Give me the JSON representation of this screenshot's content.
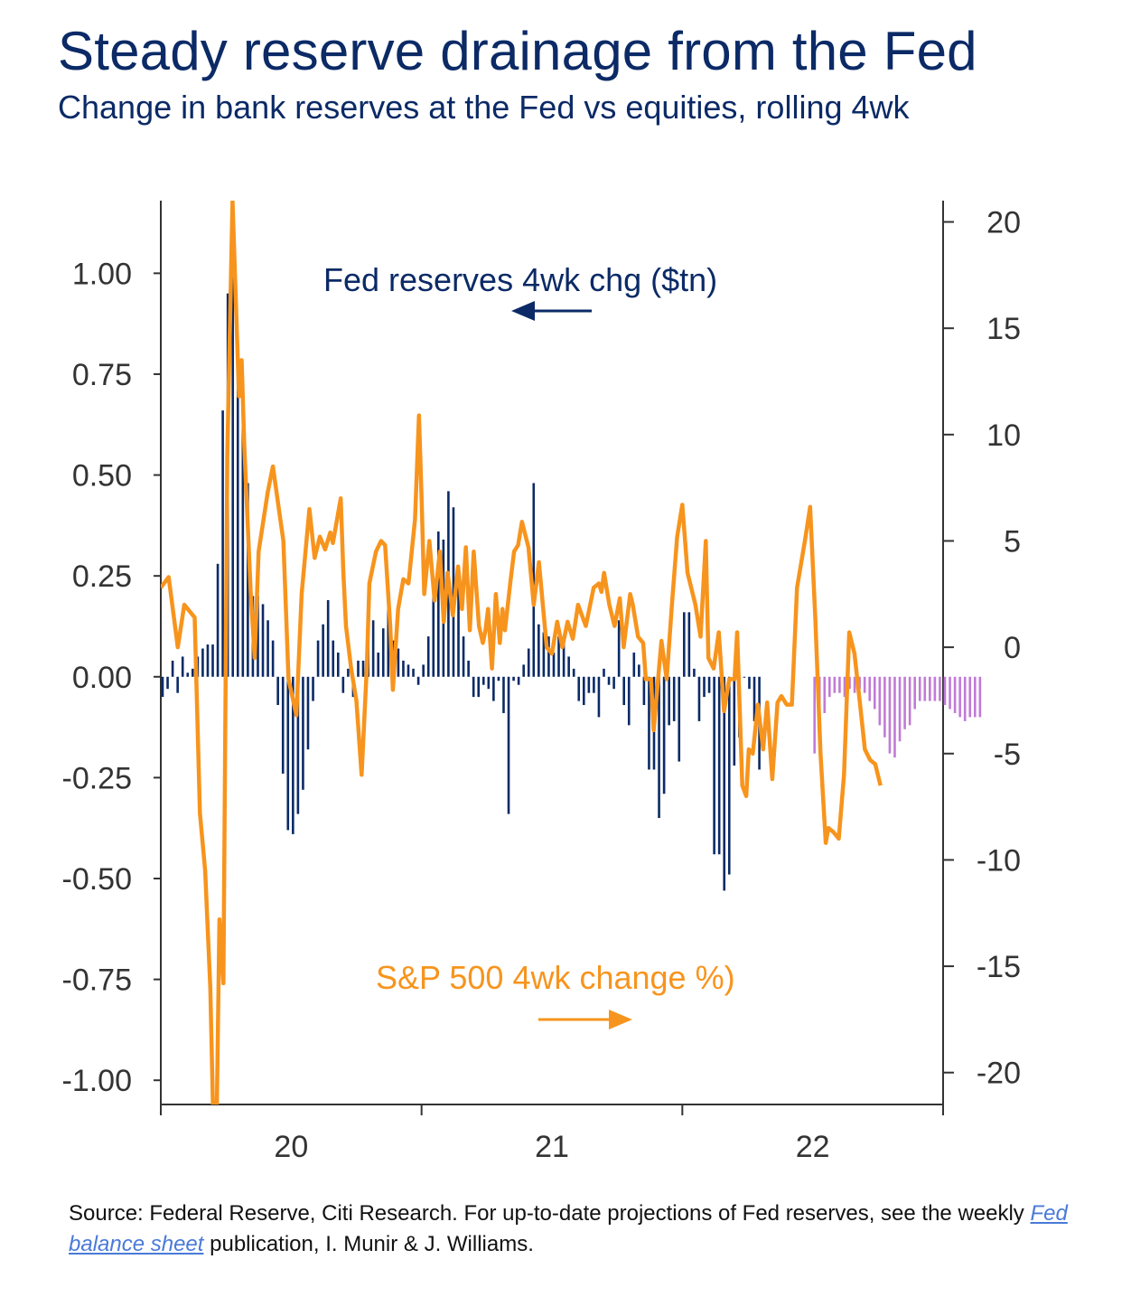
{
  "title": "Steady reserve drainage from the Fed",
  "subtitle": "Change in bank reserves at the Fed vs equities, rolling 4wk",
  "colors": {
    "navy": "#0b2a66",
    "bars": "#0b2a66",
    "projection": "#c07bd6",
    "sp500": "#f7941d",
    "axis": "#333333"
  },
  "chart_data": {
    "type": "bar+line",
    "left_axis": {
      "ylim": [
        -1.06,
        1.18
      ],
      "ticks": [
        1.0,
        0.75,
        0.5,
        0.25,
        0.0,
        -0.25,
        -0.5,
        -0.75,
        -1.0
      ],
      "tick_labels": [
        "1.00",
        "0.75",
        "0.50",
        "0.25",
        "0.00",
        "-0.25",
        "-0.50",
        "-0.75",
        "-1.00"
      ]
    },
    "right_axis": {
      "ylim": [
        -21.5,
        21
      ],
      "ticks": [
        20,
        15,
        10,
        5,
        0,
        -5,
        -10,
        -15,
        -20
      ],
      "tick_labels": [
        "20",
        "15",
        "10",
        "5",
        "0",
        "-5",
        "-10",
        "-15",
        "-20"
      ]
    },
    "x_axis": {
      "xlim": [
        2019.0,
        2022.0
      ],
      "ticks": [
        2019.0,
        2020.0,
        2021.0,
        2022.0
      ],
      "labels": [
        {
          "x": 2019.5,
          "text": "20"
        },
        {
          "x": 2020.5,
          "text": "21"
        },
        {
          "x": 2021.5,
          "text": "22"
        }
      ]
    },
    "annotations": {
      "fed": "Fed reserves 4wk chg ($tn)",
      "sp": "S&P 500 4wk change %)"
    },
    "series": [
      {
        "name": "Fed reserves 4wk chg ($tn)",
        "axis": "left",
        "kind": "bar",
        "x_start": 2019.0,
        "x_step": 0.01923,
        "values": [
          -0.05,
          -0.03,
          0.04,
          -0.04,
          0.05,
          0.01,
          0.02,
          0.05,
          0.07,
          0.08,
          0.08,
          0.28,
          0.66,
          0.95,
          0.99,
          0.8,
          0.7,
          0.48,
          0.2,
          0.2,
          0.18,
          0.14,
          0.09,
          -0.07,
          -0.24,
          -0.38,
          -0.39,
          -0.34,
          -0.28,
          -0.18,
          -0.06,
          0.09,
          0.13,
          0.19,
          0.09,
          0.06,
          -0.04,
          0.02,
          -0.05,
          0.04,
          0.04,
          0.08,
          0.14,
          0.06,
          0.12,
          0.18,
          0.09,
          0.07,
          0.04,
          0.03,
          0.02,
          -0.02,
          0.03,
          0.1,
          0.2,
          0.36,
          0.34,
          0.46,
          0.42,
          0.24,
          0.1,
          0.04,
          -0.05,
          -0.05,
          -0.02,
          -0.03,
          -0.06,
          -0.01,
          -0.09,
          -0.34,
          -0.01,
          -0.02,
          0.03,
          0.07,
          0.48,
          0.13,
          0.11,
          0.1,
          0.06,
          0.1,
          0.09,
          0.05,
          0.02,
          -0.06,
          -0.07,
          -0.04,
          -0.04,
          -0.1,
          0.02,
          -0.02,
          -0.03,
          0.14,
          -0.07,
          -0.12,
          0.06,
          0.03,
          -0.07,
          -0.23,
          -0.23,
          -0.35,
          -0.29,
          -0.12,
          -0.11,
          -0.21,
          0.16,
          0.16,
          0.02,
          -0.11,
          -0.05,
          -0.04,
          -0.44,
          -0.44,
          -0.53,
          -0.49,
          -0.22,
          -0.15,
          0.0,
          -0.03,
          -0.11,
          -0.23
        ],
        "color": "#0b2a66"
      },
      {
        "name": "Fed reserves projection",
        "axis": "left",
        "kind": "bar",
        "x_start": 2021.5,
        "x_step": 0.01923,
        "values": [
          -0.19,
          -0.16,
          -0.09,
          -0.05,
          -0.04,
          -0.04,
          -0.05,
          -0.03,
          -0.04,
          -0.03,
          -0.04,
          -0.06,
          -0.08,
          -0.12,
          -0.15,
          -0.19,
          -0.2,
          -0.16,
          -0.13,
          -0.12,
          -0.08,
          -0.06,
          -0.06,
          -0.06,
          -0.06,
          -0.06,
          -0.07,
          -0.08,
          -0.09,
          -0.1,
          -0.11,
          -0.1,
          -0.1,
          -0.1
        ],
        "color": "#c07bd6"
      },
      {
        "name": "S&P 500 4wk change %)",
        "axis": "right",
        "kind": "line",
        "points": [
          [
            2019.0,
            2.8
          ],
          [
            2019.03,
            3.3
          ],
          [
            2019.065,
            0.0
          ],
          [
            2019.09,
            2.0
          ],
          [
            2019.13,
            1.4
          ],
          [
            2019.15,
            -7.8
          ],
          [
            2019.17,
            -10.5
          ],
          [
            2019.19,
            -16.0
          ],
          [
            2019.2,
            -21.5
          ],
          [
            2019.215,
            -21.5
          ],
          [
            2019.225,
            -12.8
          ],
          [
            2019.24,
            -15.8
          ],
          [
            2019.255,
            9.0
          ],
          [
            2019.275,
            21.0
          ],
          [
            2019.3,
            11.8
          ],
          [
            2019.31,
            13.5
          ],
          [
            2019.32,
            9.5
          ],
          [
            2019.345,
            2.5
          ],
          [
            2019.36,
            -0.5
          ],
          [
            2019.375,
            4.5
          ],
          [
            2019.41,
            7.3
          ],
          [
            2019.43,
            8.5
          ],
          [
            2019.47,
            5.0
          ],
          [
            2019.49,
            -1.5
          ],
          [
            2019.52,
            -3.2
          ],
          [
            2019.54,
            2.5
          ],
          [
            2019.57,
            6.5
          ],
          [
            2019.59,
            4.2
          ],
          [
            2019.61,
            5.2
          ],
          [
            2019.63,
            4.6
          ],
          [
            2019.65,
            5.4
          ],
          [
            2019.66,
            4.9
          ],
          [
            2019.69,
            7.0
          ],
          [
            2019.7,
            3.5
          ],
          [
            2019.71,
            1.0
          ],
          [
            2019.73,
            -1.0
          ],
          [
            2019.75,
            -2.5
          ],
          [
            2019.77,
            -6.0
          ],
          [
            2019.79,
            -1.0
          ],
          [
            2019.8,
            3.0
          ],
          [
            2019.825,
            4.5
          ],
          [
            2019.845,
            5.0
          ],
          [
            2019.86,
            4.8
          ],
          [
            2019.88,
            1.0
          ],
          [
            2019.89,
            -2.0
          ],
          [
            2019.91,
            1.8
          ],
          [
            2019.93,
            3.2
          ],
          [
            2019.95,
            3.0
          ],
          [
            2019.975,
            6.0
          ],
          [
            2019.99,
            10.9
          ],
          [
            2020.0,
            7.0
          ],
          [
            2020.01,
            2.5
          ],
          [
            2020.03,
            5.0
          ],
          [
            2020.05,
            2.2
          ],
          [
            2020.07,
            4.5
          ],
          [
            2020.085,
            1.2
          ],
          [
            2020.1,
            3.5
          ],
          [
            2020.12,
            1.5
          ],
          [
            2020.14,
            3.8
          ],
          [
            2020.155,
            1.8
          ],
          [
            2020.17,
            4.7
          ],
          [
            2020.185,
            0.8
          ],
          [
            2020.2,
            4.5
          ],
          [
            2020.22,
            1.0
          ],
          [
            2020.235,
            0.2
          ],
          [
            2020.245,
            0.8
          ],
          [
            2020.255,
            1.8
          ],
          [
            2020.27,
            -1.0
          ],
          [
            2020.285,
            2.5
          ],
          [
            2020.3,
            0.2
          ],
          [
            2020.31,
            1.8
          ],
          [
            2020.32,
            0.8
          ],
          [
            2020.34,
            3.0
          ],
          [
            2020.355,
            4.5
          ],
          [
            2020.37,
            4.8
          ],
          [
            2020.385,
            5.9
          ],
          [
            2020.41,
            4.7
          ],
          [
            2020.43,
            2.0
          ],
          [
            2020.45,
            4.0
          ],
          [
            2020.48,
            0.0
          ],
          [
            2020.5,
            -0.3
          ],
          [
            2020.52,
            1.2
          ],
          [
            2020.54,
            0.0
          ],
          [
            2020.56,
            1.2
          ],
          [
            2020.58,
            0.4
          ],
          [
            2020.6,
            2.0
          ],
          [
            2020.63,
            1.0
          ],
          [
            2020.66,
            2.8
          ],
          [
            2020.68,
            3.0
          ],
          [
            2020.69,
            2.6
          ],
          [
            2020.7,
            3.5
          ],
          [
            2020.72,
            2.0
          ],
          [
            2020.74,
            1.0
          ],
          [
            2020.76,
            2.3
          ],
          [
            2020.775,
            0.0
          ],
          [
            2020.79,
            1.5
          ],
          [
            2020.8,
            2.5
          ],
          [
            2020.81,
            2.0
          ],
          [
            2020.83,
            0.5
          ],
          [
            2020.85,
            0.2
          ],
          [
            2020.86,
            -1.5
          ],
          [
            2020.88,
            -1.5
          ],
          [
            2020.89,
            -3.9
          ],
          [
            2020.92,
            0.3
          ],
          [
            2020.94,
            -1.5
          ],
          [
            2020.96,
            2.0
          ],
          [
            2020.98,
            5.2
          ],
          [
            2021.0,
            6.7
          ],
          [
            2021.02,
            3.5
          ],
          [
            2021.05,
            2.0
          ],
          [
            2021.07,
            0.5
          ],
          [
            2021.09,
            5.0
          ],
          [
            2021.1,
            -0.5
          ],
          [
            2021.12,
            -1.0
          ],
          [
            2021.14,
            0.7
          ],
          [
            2021.16,
            -3.0
          ],
          [
            2021.18,
            -1.5
          ],
          [
            2021.2,
            -1.5
          ],
          [
            2021.21,
            0.7
          ],
          [
            2021.23,
            -6.5
          ],
          [
            2021.245,
            -7.0
          ],
          [
            2021.255,
            -4.8
          ],
          [
            2021.27,
            -5.0
          ],
          [
            2021.29,
            -2.7
          ],
          [
            2021.31,
            -4.8
          ],
          [
            2021.325,
            -2.6
          ],
          [
            2021.345,
            -6.2
          ],
          [
            2021.365,
            -2.6
          ],
          [
            2021.38,
            -2.3
          ],
          [
            2021.4,
            -2.7
          ],
          [
            2021.42,
            -2.7
          ],
          [
            2021.44,
            2.8
          ],
          [
            2021.47,
            5.0
          ],
          [
            2021.49,
            6.6
          ],
          [
            2021.51,
            1.3
          ],
          [
            2021.53,
            -5.0
          ],
          [
            2021.55,
            -9.2
          ],
          [
            2021.56,
            -8.5
          ],
          [
            2021.58,
            -8.7
          ],
          [
            2021.6,
            -9.0
          ],
          [
            2021.62,
            -6.0
          ],
          [
            2021.64,
            0.7
          ],
          [
            2021.66,
            -0.3
          ],
          [
            2021.68,
            -2.5
          ],
          [
            2021.7,
            -4.8
          ],
          [
            2021.72,
            -5.3
          ],
          [
            2021.74,
            -5.5
          ],
          [
            2021.76,
            -6.5
          ]
        ],
        "color": "#f7941d"
      }
    ]
  },
  "source": {
    "prefix": "Source: Federal Reserve, Citi Research. For up-to-date projections of Fed reserves, see the weekly ",
    "link": "Fed balance sheet",
    "suffix": " publication, I. Munir & J. Williams."
  }
}
